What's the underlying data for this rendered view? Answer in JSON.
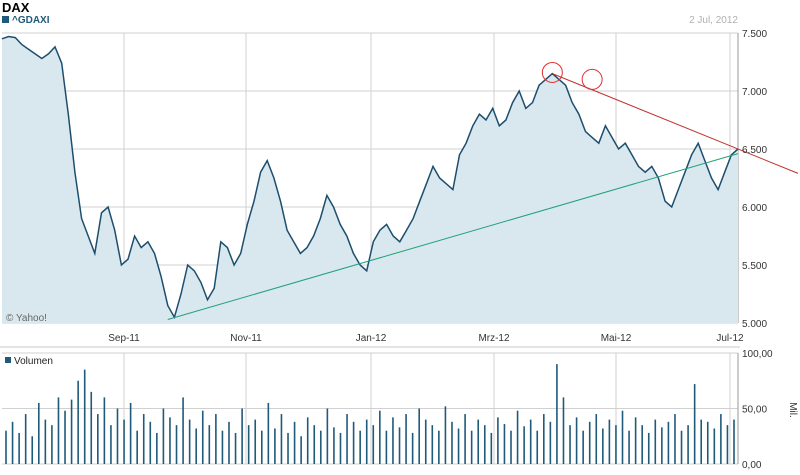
{
  "header": {
    "title": "DAX",
    "symbol": "^GDAXI",
    "date": "2 Jul, 2012",
    "credit": "© Yahoo!"
  },
  "volume_panel": {
    "label": "Volumen",
    "unit": "Mil."
  },
  "colors": {
    "price_line": "#1d4e6e",
    "price_fill": "#d9e8ee",
    "volume_bar": "#1f5a7a",
    "grid": "#d0d0d0",
    "resistance_line": "#c0302f",
    "support_line": "#22a07a",
    "marker_circle": "#e03030",
    "axis_text": "#333333"
  },
  "chart_data": [
    {
      "type": "area",
      "title": "DAX",
      "subtitle": "^GDAXI",
      "x_ticks": [
        "Sep-11",
        "Nov-11",
        "Jan-12",
        "Mrz-12",
        "Mai-12",
        "Jul-12"
      ],
      "y_ticks": [
        "5.000",
        "5.500",
        "6.000",
        "6.500",
        "7.000",
        "7.500"
      ],
      "ylim": [
        5000,
        7500
      ],
      "grid": true,
      "series": [
        {
          "values": [
            7450,
            7470,
            7460,
            7400,
            7360,
            7320,
            7280,
            7320,
            7380,
            7240,
            6800,
            6300,
            5900,
            5750,
            5600,
            5950,
            6000,
            5800,
            5500,
            5550,
            5750,
            5650,
            5700,
            5600,
            5400,
            5150,
            5050,
            5250,
            5500,
            5450,
            5350,
            5200,
            5300,
            5700,
            5650,
            5500,
            5600,
            5850,
            6050,
            6300,
            6400,
            6250,
            6050,
            5800,
            5700,
            5600,
            5650,
            5750,
            5900,
            6100,
            6000,
            5850,
            5750,
            5600,
            5500,
            5450,
            5700,
            5800,
            5850,
            5750,
            5700,
            5800,
            5900,
            6050,
            6200,
            6350,
            6250,
            6200,
            6150,
            6450,
            6550,
            6700,
            6800,
            6750,
            6850,
            6700,
            6750,
            6900,
            7000,
            6850,
            6900,
            7050,
            7100,
            7150,
            7100,
            7050,
            6900,
            6800,
            6650,
            6600,
            6550,
            6700,
            6600,
            6500,
            6550,
            6450,
            6350,
            6300,
            6350,
            6250,
            6050,
            6000,
            6150,
            6300,
            6450,
            6550,
            6400,
            6250,
            6150,
            6300,
            6450,
            6500
          ]
        }
      ],
      "annotations": [
        {
          "type": "trendline",
          "name": "resistance",
          "from": [
            83,
            7150
          ],
          "to": [
            120,
            6290
          ]
        },
        {
          "type": "trendline",
          "name": "support",
          "from": [
            25,
            5030
          ],
          "to": [
            111,
            6460
          ]
        },
        {
          "type": "circle",
          "at": [
            83,
            7160
          ]
        },
        {
          "type": "circle",
          "at": [
            89,
            7100
          ]
        }
      ]
    },
    {
      "type": "bar",
      "title": "Volumen",
      "y_ticks": [
        "0,00",
        "50,00",
        "100,00"
      ],
      "ylim": [
        0,
        100
      ],
      "ylabel": "Mil.",
      "values": [
        30,
        38,
        28,
        45,
        25,
        55,
        40,
        35,
        60,
        48,
        58,
        75,
        85,
        65,
        45,
        60,
        35,
        50,
        40,
        55,
        30,
        45,
        38,
        28,
        50,
        42,
        35,
        60,
        40,
        32,
        48,
        35,
        45,
        30,
        38,
        28,
        50,
        35,
        40,
        30,
        55,
        32,
        45,
        28,
        38,
        25,
        42,
        35,
        30,
        50,
        33,
        28,
        45,
        38,
        30,
        40,
        35,
        48,
        30,
        42,
        33,
        45,
        28,
        50,
        40,
        35,
        30,
        52,
        38,
        32,
        45,
        30,
        40,
        35,
        28,
        42,
        36,
        30,
        48,
        34,
        40,
        30,
        45,
        38,
        90,
        60,
        35,
        42,
        30,
        38,
        45,
        32,
        40,
        35,
        48,
        30,
        42,
        35,
        28,
        40,
        33,
        38,
        45,
        30,
        35,
        72,
        40,
        38,
        32,
        45,
        35,
        40
      ]
    }
  ]
}
